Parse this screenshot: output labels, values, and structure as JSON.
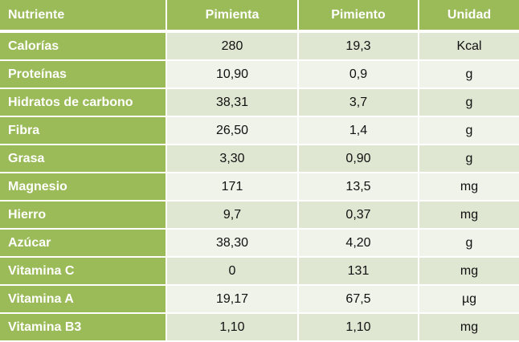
{
  "table": {
    "header": [
      "Nutriente",
      "Pimienta",
      "Pimiento",
      "Unidad"
    ],
    "rows": [
      [
        "Calorías",
        "280",
        "19,3",
        "Kcal"
      ],
      [
        "Proteínas",
        "10,90",
        "0,9",
        "g"
      ],
      [
        "Hidratos de carbono",
        "38,31",
        "3,7",
        "g"
      ],
      [
        "Fibra",
        "26,50",
        "1,4",
        "g"
      ],
      [
        "Grasa",
        "3,30",
        "0,90",
        "g"
      ],
      [
        "Magnesio",
        "171",
        "13,5",
        "mg"
      ],
      [
        "Hierro",
        "9,7",
        "0,37",
        "mg"
      ],
      [
        "Azúcar",
        "38,30",
        "4,20",
        "g"
      ],
      [
        "Vitamina C",
        "0",
        "131",
        "mg"
      ],
      [
        "Vitamina A",
        "19,17",
        "67,5",
        "µg"
      ],
      [
        "Vitamina B3",
        "1,10",
        "1,10",
        "mg"
      ]
    ]
  }
}
